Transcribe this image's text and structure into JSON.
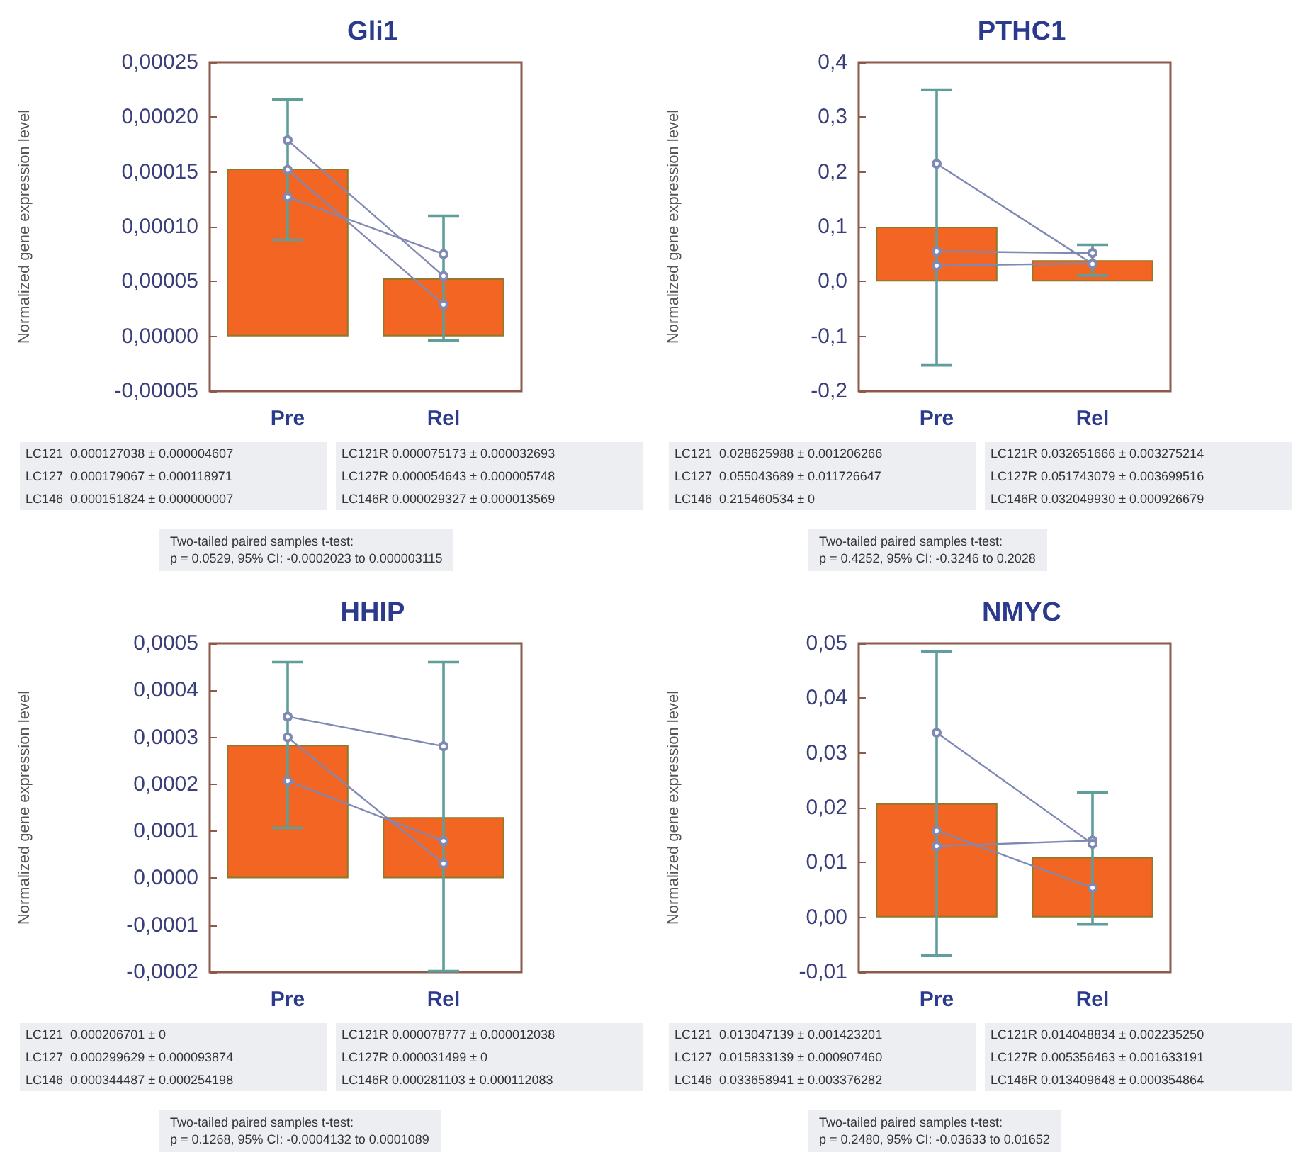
{
  "chart_data": [
    {
      "type": "bar",
      "title": "Gli1",
      "ylabel": "Normalized gene expression level",
      "categories": [
        "Pre",
        "Rel"
      ],
      "marker": "circle",
      "ylim": [
        -5e-05,
        0.00025
      ],
      "yticks": [
        {
          "value": -5e-05,
          "label": "-0,00005"
        },
        {
          "value": 0,
          "label": "0,00000"
        },
        {
          "value": 5e-05,
          "label": "0,00005"
        },
        {
          "value": 0.0001,
          "label": "0,00010"
        },
        {
          "value": 0.00015,
          "label": "0,00015"
        },
        {
          "value": 0.0002,
          "label": "0,00020"
        },
        {
          "value": 0.00025,
          "label": "0,00025"
        }
      ],
      "series": [
        {
          "color": "#f26522",
          "values": [
            0.000153,
            5.3e-05
          ],
          "errors": [
            [
              8.8e-05,
              0.000216
            ],
            [
              -4e-06,
              0.00011
            ]
          ]
        },
        {
          "type": "line",
          "color": "#7f89b4",
          "values": [
            0.000127,
            7.5e-05
          ]
        },
        {
          "type": "line",
          "color": "#7f89b4",
          "values": [
            0.000179,
            5.5e-05
          ]
        },
        {
          "type": "line",
          "color": "#7f89b4",
          "values": [
            0.000152,
            2.9e-05
          ]
        }
      ],
      "annotations": [
        "LC121  0.000127038 ± 0.000004607",
        "LC121R 0.000075173 ± 0.000032693",
        "LC127  0.000179067 ± 0.000118971",
        "LC127R 0.000054643 ± 0.000005748",
        "LC146  0.000151824 ± 0.000000007",
        "LC146R 0.000029327 ± 0.000013569",
        "Two-tailed paired samples t-test:",
        "p = 0.0529, 95% CI: -0.0002023 to 0.000003115"
      ]
    },
    {
      "type": "bar",
      "title": "PTHC1",
      "ylabel": "Normalized gene expression level",
      "categories": [
        "Pre",
        "Rel"
      ],
      "marker": "circle",
      "ylim": [
        -0.2,
        0.4
      ],
      "yticks": [
        {
          "value": -0.2,
          "label": "-0,2"
        },
        {
          "value": -0.1,
          "label": "-0,1"
        },
        {
          "value": 0,
          "label": "0,0"
        },
        {
          "value": 0.1,
          "label": "0,1"
        },
        {
          "value": 0.2,
          "label": "0,2"
        },
        {
          "value": 0.3,
          "label": "0,3"
        },
        {
          "value": 0.4,
          "label": "0,4"
        }
      ],
      "series": [
        {
          "color": "#f26522",
          "values": [
            0.1,
            0.039
          ],
          "errors": [
            [
              -0.153,
              0.35
            ],
            [
              0.011,
              0.067
            ]
          ]
        },
        {
          "type": "line",
          "color": "#7f89b4",
          "values": [
            0.029,
            0.033
          ]
        },
        {
          "type": "line",
          "color": "#7f89b4",
          "values": [
            0.055,
            0.052
          ]
        },
        {
          "type": "line",
          "color": "#7f89b4",
          "values": [
            0.215,
            0.032
          ]
        }
      ],
      "annotations": [
        "LC121  0.028625988 ± 0.001206266",
        "LC121R 0.032651666 ± 0.003275214",
        "LC127  0.055043689 ± 0.011726647",
        "LC127R 0.051743079 ± 0.003699516",
        "LC146  0.215460534 ± 0",
        "LC146R 0.032049930 ± 0.000926679",
        "Two-tailed paired samples t-test:",
        "p = 0.4252, 95% CI: -0.3246 to 0.2028"
      ]
    },
    {
      "type": "bar",
      "title": "HHIP",
      "ylabel": "Normalized gene expression level",
      "categories": [
        "Pre",
        "Rel"
      ],
      "marker": "circle",
      "ylim": [
        -0.0002,
        0.0005
      ],
      "yticks": [
        {
          "value": -0.0002,
          "label": "-0,0002"
        },
        {
          "value": -0.0001,
          "label": "-0,0001"
        },
        {
          "value": 0,
          "label": "0,0000"
        },
        {
          "value": 0.0001,
          "label": "0,0001"
        },
        {
          "value": 0.0002,
          "label": "0,0002"
        },
        {
          "value": 0.0003,
          "label": "0,0003"
        },
        {
          "value": 0.0004,
          "label": "0,0004"
        },
        {
          "value": 0.0005,
          "label": "0,0005"
        }
      ],
      "series": [
        {
          "color": "#f26522",
          "values": [
            0.000284,
            0.00013
          ],
          "errors": [
            [
              0.000107,
              0.00046
            ],
            [
              -0.000198,
              0.00046
            ]
          ]
        },
        {
          "type": "line",
          "color": "#7f89b4",
          "values": [
            0.000207,
            7.9e-05
          ]
        },
        {
          "type": "line",
          "color": "#7f89b4",
          "values": [
            0.0003,
            3.1e-05
          ]
        },
        {
          "type": "line",
          "color": "#7f89b4",
          "values": [
            0.000344,
            0.000281
          ]
        }
      ],
      "annotations": [
        "LC121  0.000206701 ± 0",
        "LC121R 0.000078777 ± 0.000012038",
        "LC127  0.000299629 ± 0.000093874",
        "LC127R 0.000031499 ± 0",
        "LC146  0.000344487 ± 0.000254198",
        "LC146R 0.000281103 ± 0.000112083",
        "Two-tailed paired samples t-test:",
        "p = 0.1268, 95% CI: -0.0004132 to 0.0001089"
      ]
    },
    {
      "type": "bar",
      "title": "NMYC",
      "ylabel": "Normalized gene expression level",
      "categories": [
        "Pre",
        "Rel"
      ],
      "marker": "circle",
      "ylim": [
        -0.01,
        0.05
      ],
      "yticks": [
        {
          "value": -0.01,
          "label": "-0,01"
        },
        {
          "value": 0,
          "label": "0,00"
        },
        {
          "value": 0.01,
          "label": "0,01"
        },
        {
          "value": 0.02,
          "label": "0,02"
        },
        {
          "value": 0.03,
          "label": "0,03"
        },
        {
          "value": 0.04,
          "label": "0,04"
        },
        {
          "value": 0.05,
          "label": "0,05"
        }
      ],
      "series": [
        {
          "color": "#f26522",
          "values": [
            0.0208,
            0.011
          ],
          "errors": [
            [
              -0.007,
              0.0485
            ],
            [
              -0.0013,
              0.0228
            ]
          ]
        },
        {
          "type": "line",
          "color": "#7f89b4",
          "values": [
            0.013,
            0.014
          ]
        },
        {
          "type": "line",
          "color": "#7f89b4",
          "values": [
            0.0158,
            0.0054
          ]
        },
        {
          "type": "line",
          "color": "#7f89b4",
          "values": [
            0.0337,
            0.0134
          ]
        }
      ],
      "annotations": [
        "LC121  0.013047139 ± 0.001423201",
        "LC121R 0.014048834 ± 0.002235250",
        "LC127  0.015833139 ± 0.000907460",
        "LC127R 0.005356463 ± 0.001633191",
        "LC146  0.033658941 ± 0.003376282",
        "LC146R 0.013409648 ± 0.000354864",
        "Two-tailed paired samples t-test:",
        "p = 0.2480, 95% CI: -0.03633 to 0.01652"
      ]
    }
  ]
}
